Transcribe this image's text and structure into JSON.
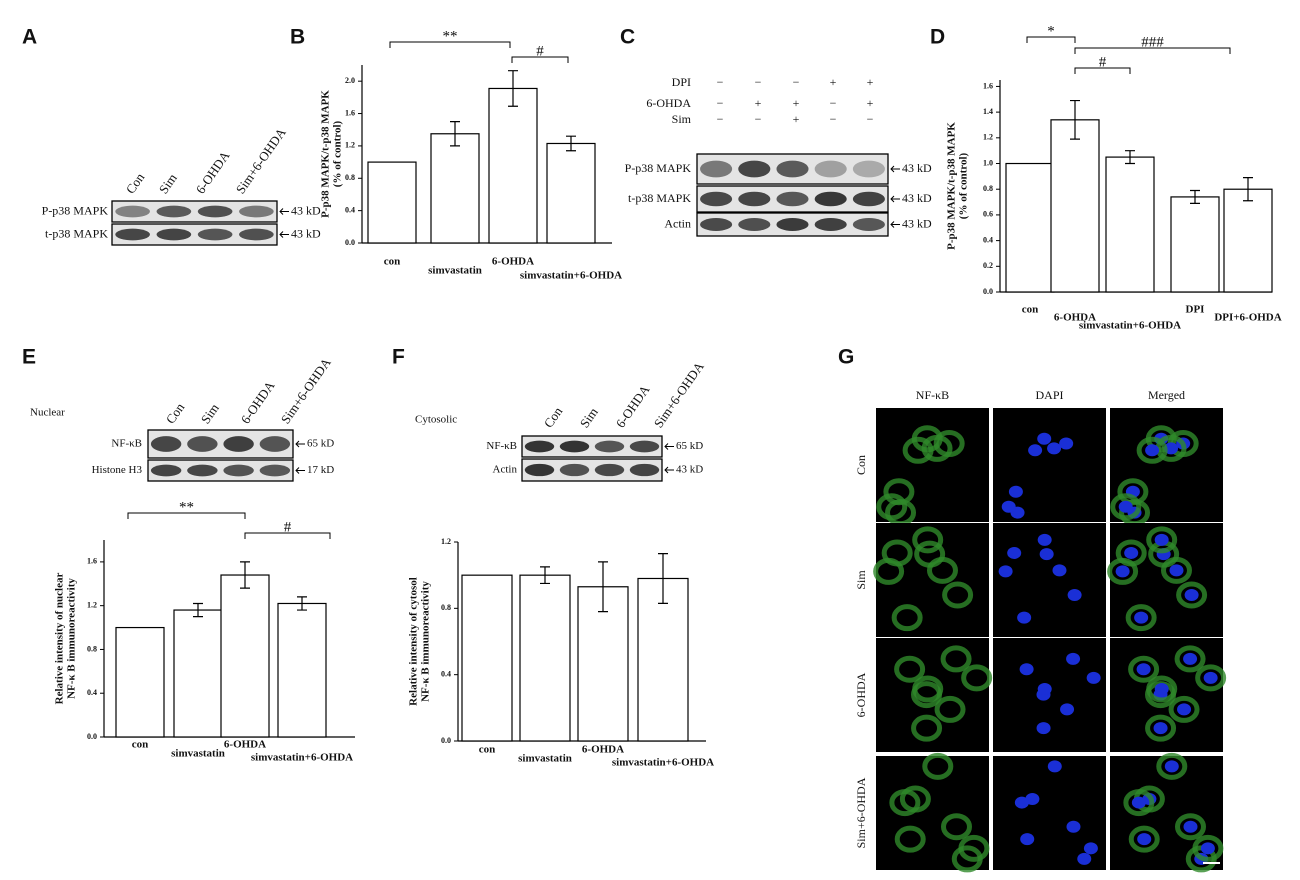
{
  "panels": [
    "A",
    "B",
    "C",
    "D",
    "E",
    "F",
    "G"
  ],
  "blots": [
    {
      "lanes": [
        "Con",
        "Sim",
        "6-OHDA",
        "Sim+6-OHDA"
      ],
      "rows": [
        {
          "label": "P-p38 MAPK",
          "size": "43 kD"
        },
        {
          "label": "t-p38 MAPK",
          "size": "43 kD"
        }
      ]
    },
    {
      "treatments": [
        {
          "label": "DPI",
          "signs": [
            "−",
            "−",
            "−",
            "+",
            "+"
          ]
        },
        {
          "label": "6-OHDA",
          "signs": [
            "−",
            "+",
            "+",
            "−",
            "+"
          ]
        },
        {
          "label": "Sim",
          "signs": [
            "−",
            "−",
            "+",
            "−",
            "−"
          ]
        }
      ],
      "rows": [
        {
          "label": "P-p38 MAPK",
          "size": "43 kD"
        },
        {
          "label": "t-p38 MAPK",
          "size": "43 kD"
        },
        {
          "label": "Actin",
          "size": "43 kD"
        }
      ]
    },
    {
      "header": "Nuclear",
      "lanes": [
        "Con",
        "Sim",
        "6-OHDA",
        "Sim+6-OHDA"
      ],
      "rows": [
        {
          "label": "NF-κB",
          "size": "65 kD"
        },
        {
          "label": "Histone H3",
          "size": "17 kD"
        }
      ]
    },
    {
      "header": "Cytosolic",
      "lanes": [
        "Con",
        "Sim",
        "6-OHDA",
        "Sim+6-OHDA"
      ],
      "rows": [
        {
          "label": "NF-κB",
          "size": "65 kD"
        },
        {
          "label": "Actin",
          "size": "43 kD"
        }
      ]
    }
  ],
  "chart_data": [
    {
      "type": "bar",
      "ylabel": [
        "P-p38 MAPK/t-p38 MAPK",
        "(% of control)"
      ],
      "categories": [
        "con",
        "simvastatin",
        "6-OHDA",
        "simvastatin+6-OHDA"
      ],
      "values": [
        1.0,
        1.35,
        1.91,
        1.23
      ],
      "errors": [
        null,
        0.15,
        0.22,
        0.09
      ],
      "color": "#ffffff",
      "ylim": [
        0,
        2.2
      ],
      "yticks": [
        {
          "value": 0,
          "label": "0.0"
        },
        {
          "value": 0.4,
          "label": "0.4"
        },
        {
          "value": 0.8,
          "label": "0.8"
        },
        {
          "value": 1.2,
          "label": "1.2"
        },
        {
          "value": 1.6,
          "label": "1.6"
        },
        {
          "value": 2.0,
          "label": "2.0"
        }
      ],
      "annotations": [
        "**",
        "#"
      ]
    },
    {
      "type": "bar",
      "ylabel": [
        "P-p38 MAPK/t-p38 MAPK",
        "(% of control)"
      ],
      "categories": [
        "con",
        "6-OHDA",
        "simvastatin+6-OHDA",
        "DPI",
        "DPI+6-OHDA"
      ],
      "values": [
        1.0,
        1.34,
        1.05,
        0.74,
        0.8
      ],
      "errors": [
        null,
        0.15,
        0.05,
        0.05,
        0.09
      ],
      "color": "#ffffff",
      "ylim": [
        0,
        1.65
      ],
      "yticks": [
        {
          "value": 0,
          "label": "0.0"
        },
        {
          "value": 0.2,
          "label": "0.2"
        },
        {
          "value": 0.4,
          "label": "0.4"
        },
        {
          "value": 0.6,
          "label": "0.6"
        },
        {
          "value": 0.8,
          "label": "0.8"
        },
        {
          "value": 1.0,
          "label": "1.0"
        },
        {
          "value": 1.2,
          "label": "1.2"
        },
        {
          "value": 1.4,
          "label": "1.4"
        },
        {
          "value": 1.6,
          "label": "1.6"
        }
      ],
      "annotations": [
        "*",
        "###",
        "#"
      ]
    },
    {
      "type": "bar",
      "ylabel": [
        "Relative intensity of nuclear",
        "NF-κ B immunoreactivity"
      ],
      "categories": [
        "con",
        "simvastatin",
        "6-OHDA",
        "simvastatin+6-OHDA"
      ],
      "values": [
        1.0,
        1.16,
        1.48,
        1.22
      ],
      "errors": [
        null,
        0.06,
        0.12,
        0.06
      ],
      "color": "#ffffff",
      "ylim": [
        0,
        1.8
      ],
      "yticks": [
        {
          "value": 0,
          "label": "0.0"
        },
        {
          "value": 0.4,
          "label": "0.4"
        },
        {
          "value": 0.8,
          "label": "0.8"
        },
        {
          "value": 1.2,
          "label": "1.2"
        },
        {
          "value": 1.6,
          "label": "1.6"
        }
      ],
      "annotations": [
        "**",
        "#"
      ]
    },
    {
      "type": "bar",
      "ylabel": [
        "Relative intensity of cytosol",
        "NF-κ B immunoreactivity"
      ],
      "categories": [
        "con",
        "simvastatin",
        "6-OHDA",
        "simvastatin+6-OHDA"
      ],
      "values": [
        1.0,
        1.0,
        0.93,
        0.98
      ],
      "errors": [
        null,
        0.05,
        0.15,
        0.15
      ],
      "color": "#ffffff",
      "ylim": [
        0,
        1.2
      ],
      "yticks": [
        {
          "value": 0,
          "label": "0.0"
        },
        {
          "value": 0.4,
          "label": "0.4"
        },
        {
          "value": 0.8,
          "label": "0.8"
        },
        {
          "value": 1.2,
          "label": "1.2"
        }
      ],
      "annotations": []
    }
  ],
  "microscopy": {
    "columns": [
      "NF-κB",
      "DAPI",
      "Merged"
    ],
    "rows": [
      "Con",
      "Sim",
      "6-OHDA",
      "Sim+6-OHDA"
    ]
  }
}
